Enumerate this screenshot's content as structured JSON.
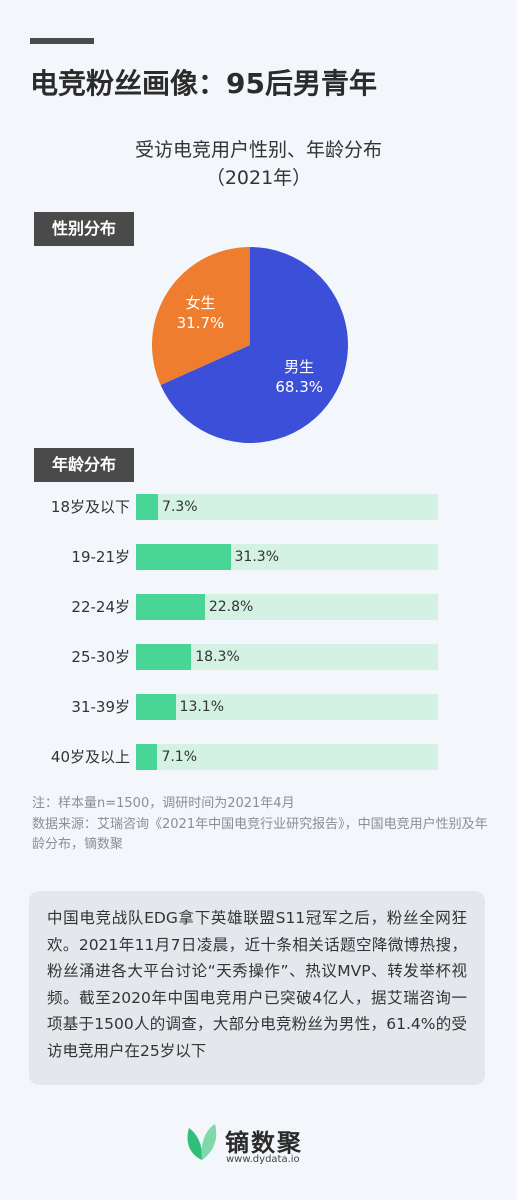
{
  "header": {
    "title": "电竞粉丝画像：95后男青年"
  },
  "chart_data": [
    {
      "type": "pie",
      "title": "受访电竞用户性别、年龄分布",
      "subtitle": "（2021年）",
      "section_label": "性别分布",
      "slices": [
        {
          "name": "男生",
          "value": 68.3,
          "label": "68.3%",
          "color": "#3b4fd8"
        },
        {
          "name": "女生",
          "value": 31.7,
          "label": "31.7%",
          "color": "#ee7d2f"
        }
      ]
    },
    {
      "type": "bar",
      "orientation": "horizontal",
      "section_label": "年龄分布",
      "categories": [
        "18岁及以下",
        "19-21岁",
        "22-24岁",
        "25-30岁",
        "31-39岁",
        "40岁及以上"
      ],
      "values": [
        7.3,
        31.3,
        22.8,
        18.3,
        13.1,
        7.1
      ],
      "value_labels": [
        "7.3%",
        "31.3%",
        "22.8%",
        "18.3%",
        "13.1%",
        "7.1%"
      ],
      "xlim": [
        0,
        100
      ],
      "fill_color": "#48d596",
      "track_color": "#d4f2e4"
    }
  ],
  "notes": {
    "sample": "注：样本量n=1500，调研时间为2021年4月",
    "source": "数据来源：艾瑞咨询《2021年中国电竞行业研究报告》，中国电竞用户性别及年龄分布，镝数聚"
  },
  "description": "中国电竞战队EDG拿下英雄联盟S11冠军之后，粉丝全网狂欢。2021年11月7日凌晨，近十条相关话题空降微博热搜，粉丝涌进各大平台讨论“天秀操作”、热议MVP、转发举杯视频。截至2020年中国电竞用户已突破4亿人，据艾瑞咨询一项基于1500人的调查，大部分电竞粉丝为男性，61.4%的受访电竞用户在25岁以下",
  "logo": {
    "name": "镝数聚",
    "url": "www.dydata.io",
    "icon": "leaf-logo-icon"
  }
}
